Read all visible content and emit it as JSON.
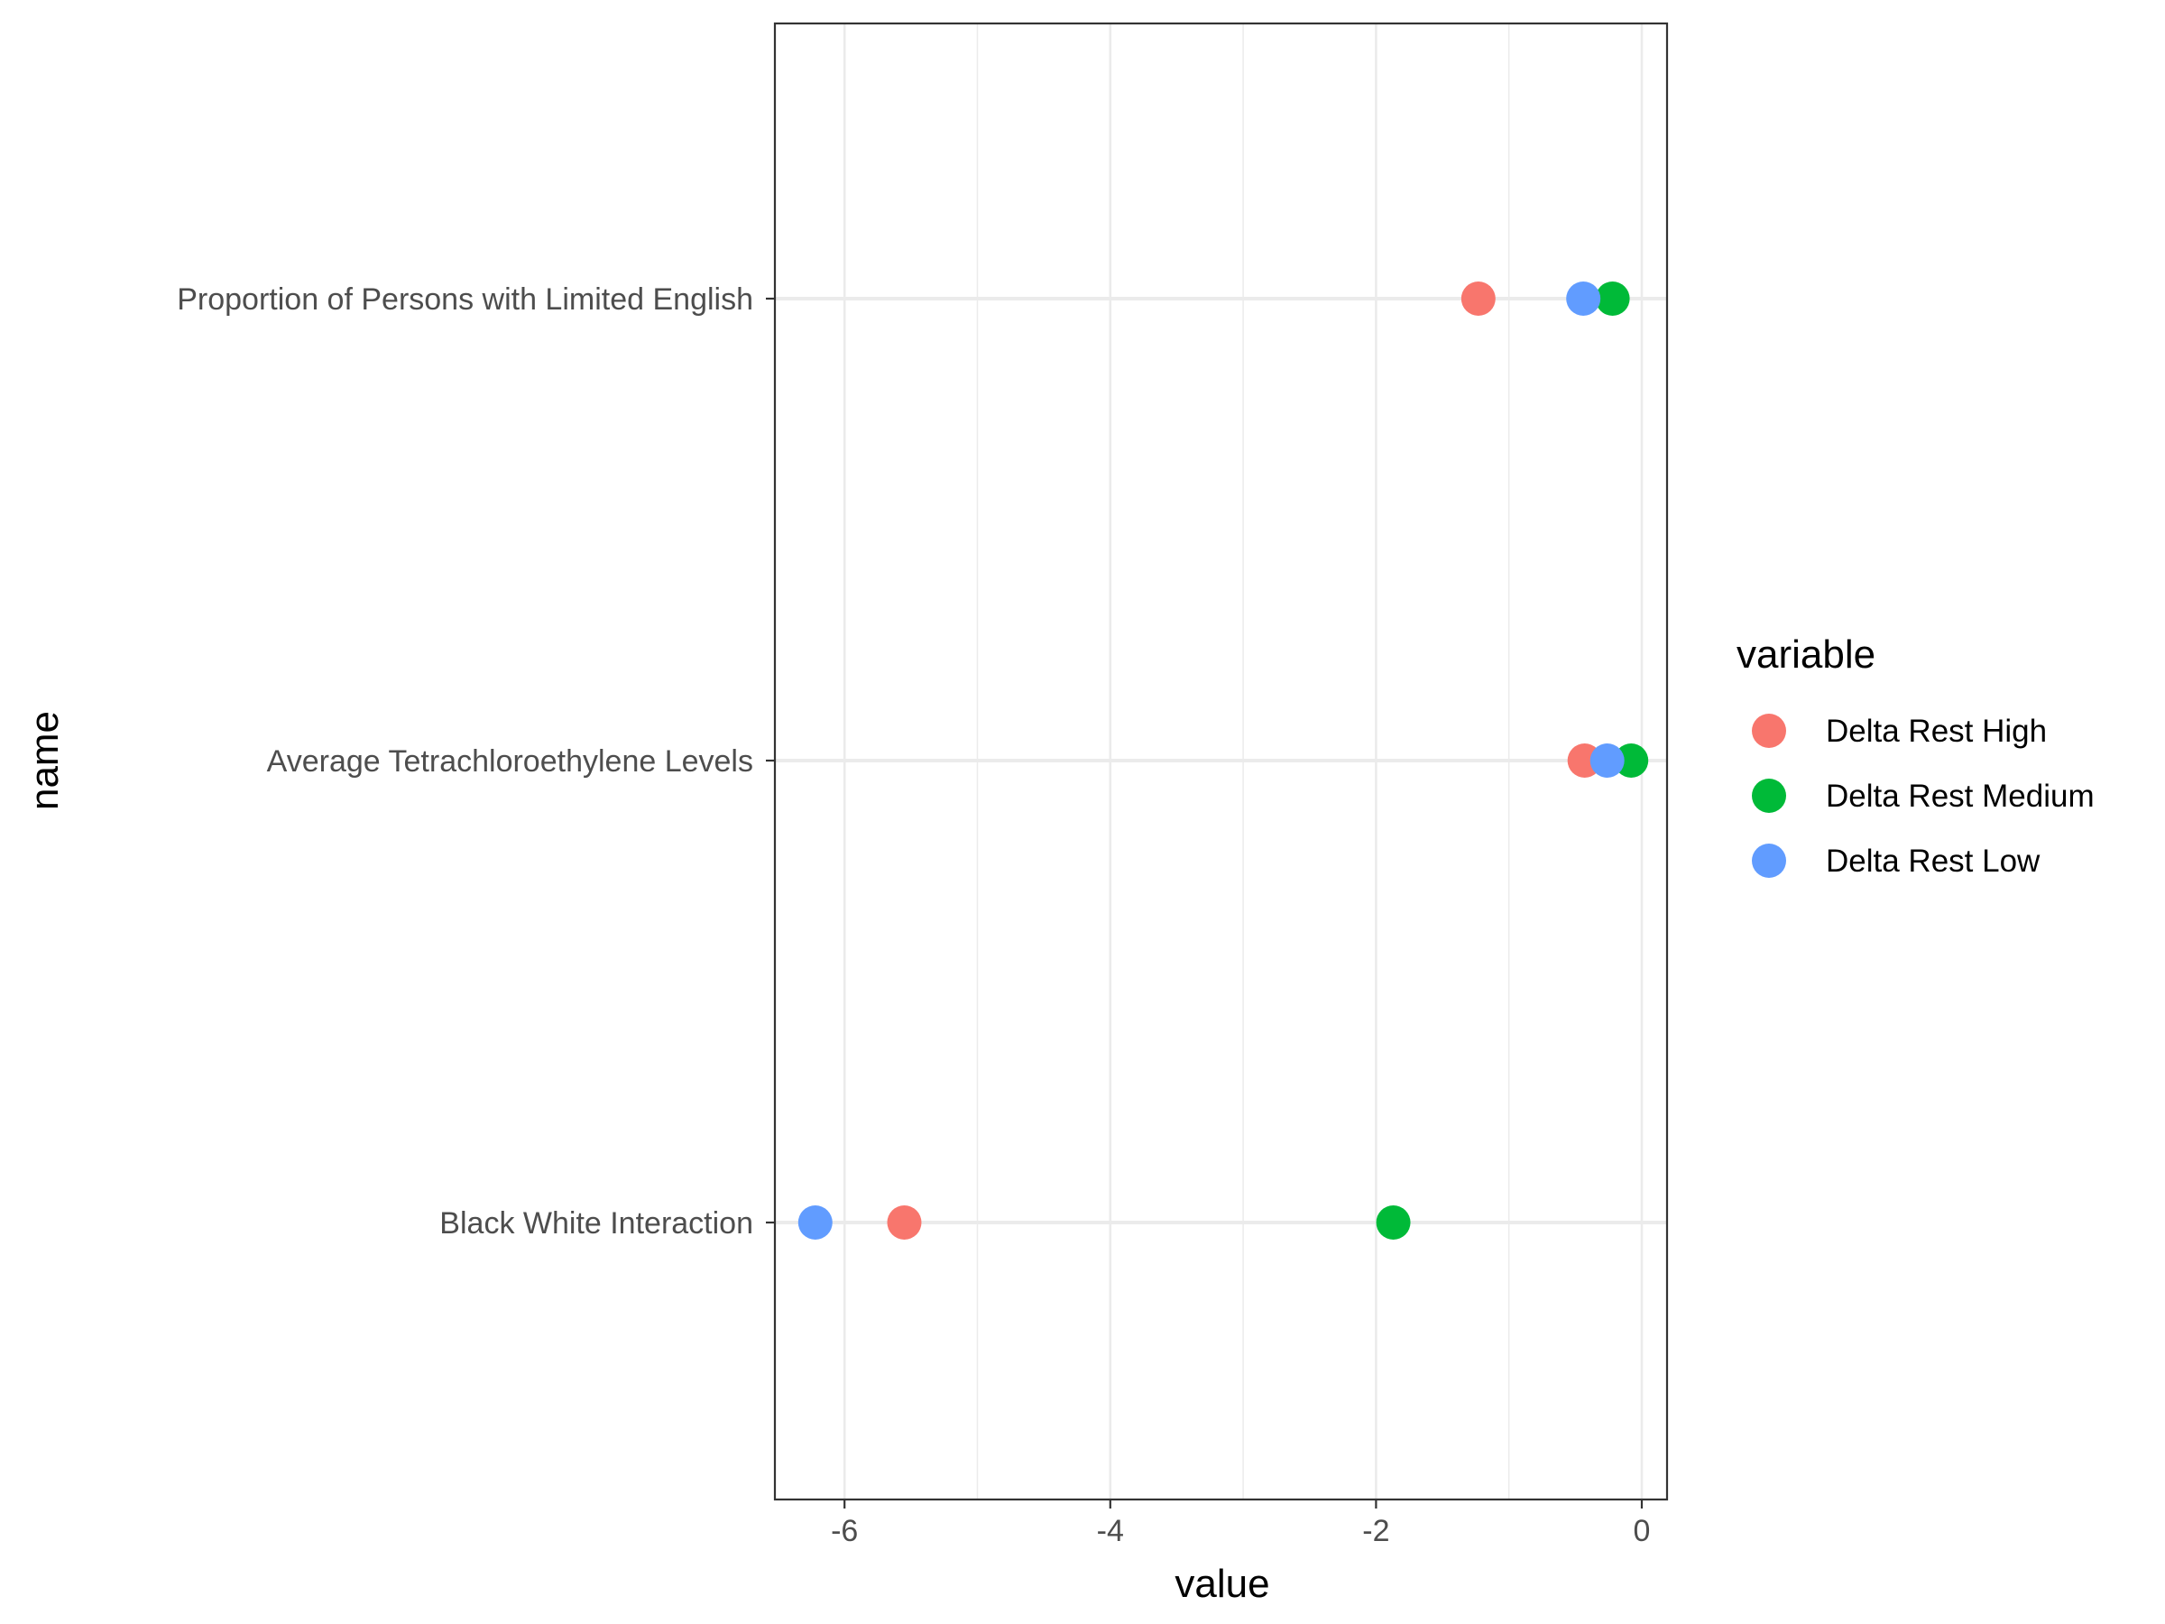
{
  "chart_data": {
    "type": "scatter",
    "xlabel": "value",
    "ylabel": "name",
    "xlim": [
      -6.5,
      0.2
    ],
    "x_ticks": [
      -6,
      -4,
      -2,
      0
    ],
    "x_minor_ticks": [
      -5,
      -3,
      -1
    ],
    "grid": true,
    "categories": [
      "Black White Interaction",
      "Average Tetrachloroethylene Levels",
      "Proportion of Persons with Limited English"
    ],
    "series": [
      {
        "name": "Delta Rest High",
        "color": "#F8766D",
        "values": [
          -5.55,
          -0.43,
          -1.23
        ]
      },
      {
        "name": "Delta Rest Medium",
        "color": "#00BA38",
        "values": [
          -1.87,
          -0.08,
          -0.22
        ]
      },
      {
        "name": "Delta Rest Low",
        "color": "#619CFF",
        "values": [
          -6.22,
          -0.26,
          -0.44
        ]
      }
    ],
    "legend": {
      "title": "variable",
      "position": "right"
    }
  }
}
